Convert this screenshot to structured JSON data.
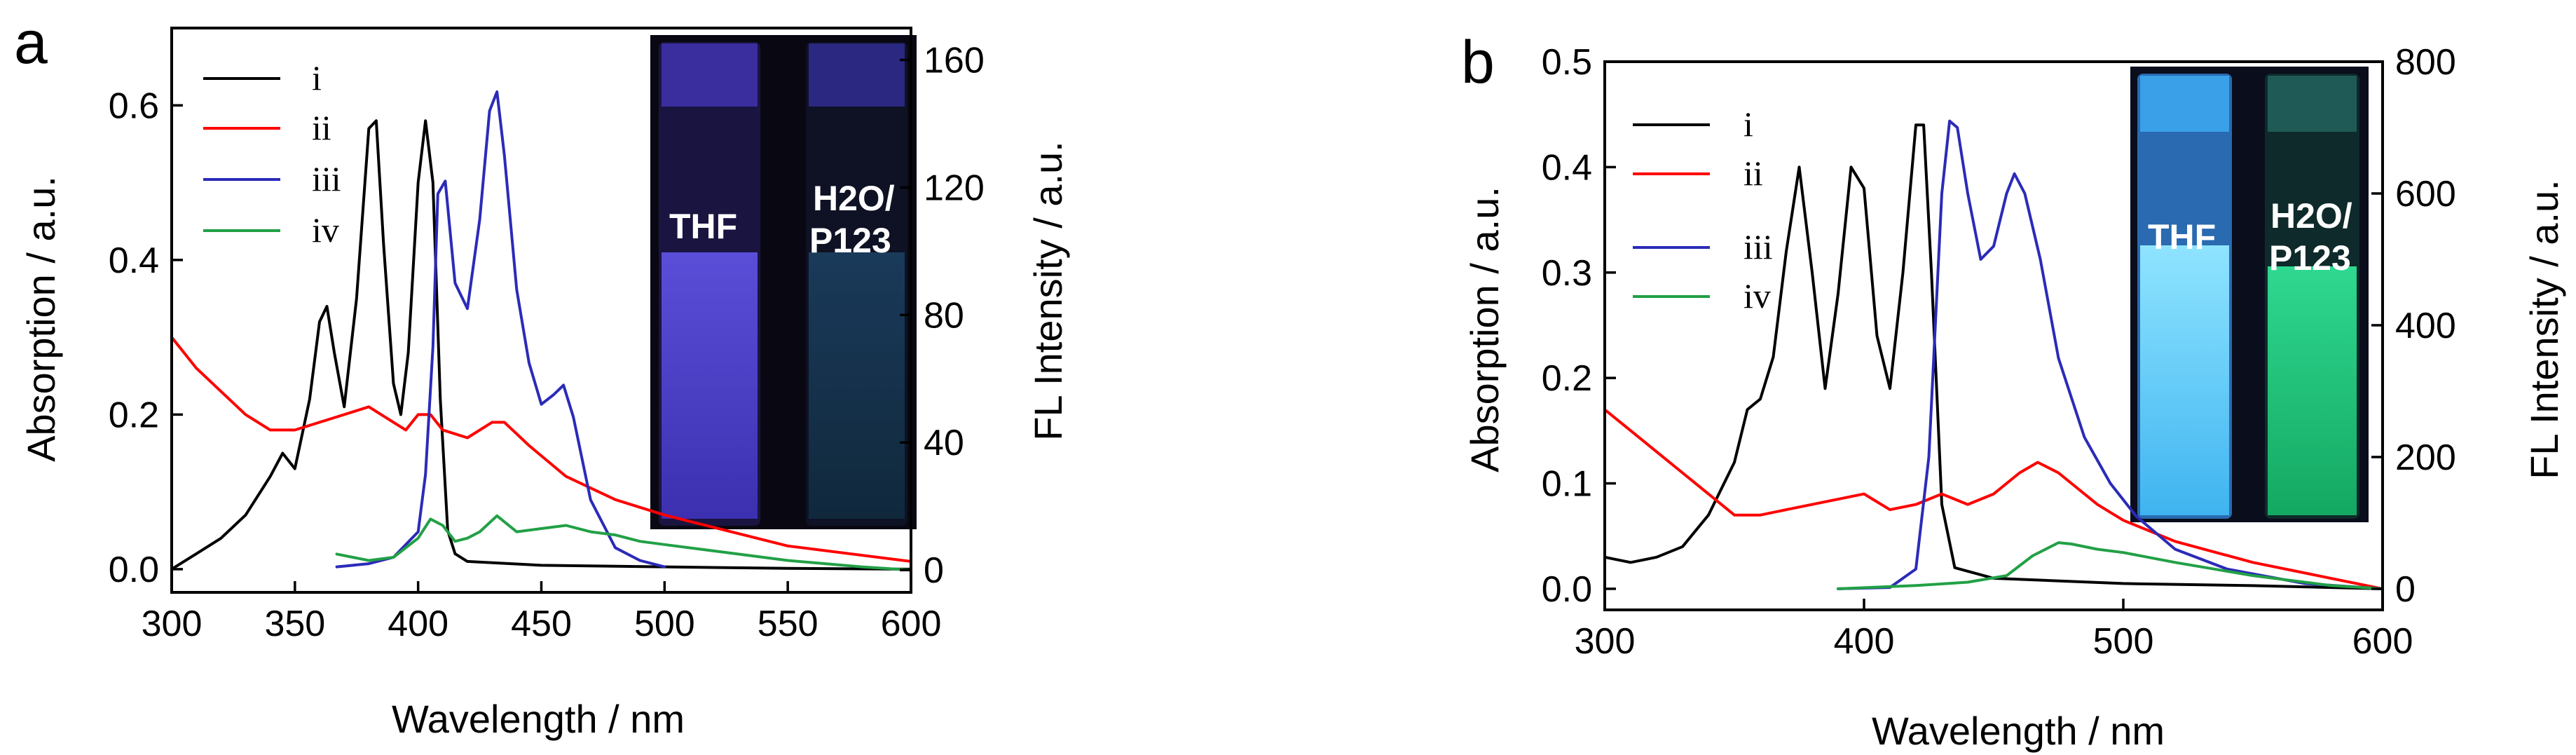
{
  "chart_data": [
    {
      "panel_label": "a",
      "type": "line",
      "xlabel": "Wavelength / nm",
      "ylabel_left": "Absorption / a.u.",
      "ylabel_right": "FL Intensity / a.u.",
      "xlim": [
        300,
        600
      ],
      "ylim_left": [
        -0.03,
        0.7
      ],
      "ylim_right": [
        -7,
        170
      ],
      "xticks": [
        300,
        350,
        400,
        450,
        500,
        550,
        600
      ],
      "yticks_left": [
        0.0,
        0.2,
        0.4,
        0.6
      ],
      "yticks_right": [
        0,
        40,
        80,
        120,
        160
      ],
      "legend": {
        "position": "top-left",
        "entries": [
          "i",
          "ii",
          "iii",
          "iv"
        ]
      },
      "inset": {
        "position": "top-right",
        "vial_labels": [
          "THF",
          "H2O/",
          "P123"
        ]
      },
      "series": [
        {
          "name": "i",
          "color": "#000000",
          "axis": "left",
          "x": [
            300,
            310,
            320,
            330,
            340,
            345,
            350,
            356,
            360,
            363,
            366,
            370,
            375,
            380,
            383,
            386,
            390,
            393,
            396,
            400,
            403,
            406,
            409,
            412,
            415,
            420,
            450,
            500,
            550,
            600
          ],
          "y": [
            0.0,
            0.02,
            0.04,
            0.07,
            0.12,
            0.15,
            0.13,
            0.22,
            0.32,
            0.34,
            0.28,
            0.21,
            0.35,
            0.57,
            0.58,
            0.42,
            0.24,
            0.2,
            0.28,
            0.5,
            0.58,
            0.5,
            0.22,
            0.05,
            0.02,
            0.01,
            0.005,
            0.003,
            0.001,
            0.0
          ]
        },
        {
          "name": "ii",
          "color": "#ff0000",
          "axis": "left",
          "x": [
            300,
            310,
            320,
            330,
            340,
            350,
            360,
            370,
            380,
            390,
            395,
            400,
            405,
            410,
            420,
            430,
            435,
            445,
            460,
            480,
            500,
            550,
            600
          ],
          "y": [
            0.3,
            0.26,
            0.23,
            0.2,
            0.18,
            0.18,
            0.19,
            0.2,
            0.21,
            0.19,
            0.18,
            0.2,
            0.2,
            0.18,
            0.17,
            0.19,
            0.19,
            0.16,
            0.12,
            0.09,
            0.07,
            0.03,
            0.01
          ]
        },
        {
          "name": "iii",
          "color": "#2b2bb8",
          "axis": "right",
          "x": [
            367,
            380,
            390,
            400,
            403,
            406,
            408,
            411,
            415,
            420,
            425,
            429,
            432,
            435,
            440,
            445,
            450,
            455,
            459,
            463,
            470,
            480,
            490,
            500
          ],
          "y": [
            1,
            2,
            4,
            12,
            30,
            70,
            118,
            122,
            90,
            82,
            110,
            144,
            150,
            130,
            88,
            65,
            52,
            55,
            58,
            48,
            22,
            7,
            3,
            1
          ]
        },
        {
          "name": "iv",
          "color": "#22a046",
          "axis": "right",
          "x": [
            367,
            380,
            390,
            400,
            405,
            410,
            415,
            420,
            425,
            432,
            440,
            450,
            460,
            470,
            480,
            490,
            500,
            520,
            550,
            580,
            600
          ],
          "y": [
            5,
            3,
            4,
            10,
            16,
            14,
            9,
            10,
            12,
            17,
            12,
            13,
            14,
            12,
            11,
            9,
            8,
            6,
            3,
            1,
            0
          ]
        }
      ]
    },
    {
      "panel_label": "b",
      "type": "line",
      "xlabel": "Wavelength / nm",
      "ylabel_left": "Absorption / a.u.",
      "ylabel_right": "FL Intensity / a.u.",
      "xlim": [
        300,
        600
      ],
      "ylim_left": [
        -0.02,
        0.5
      ],
      "ylim_right": [
        -32,
        800
      ],
      "xticks": [
        300,
        400,
        500,
        600
      ],
      "yticks_left": [
        0.0,
        0.1,
        0.2,
        0.3,
        0.4,
        0.5
      ],
      "yticks_right": [
        0,
        200,
        400,
        600,
        800
      ],
      "legend": {
        "position": "top-left",
        "entries": [
          "i",
          "ii",
          "iii",
          "iv"
        ]
      },
      "inset": {
        "position": "top-right",
        "vial_labels": [
          "THF",
          "H2O/",
          "P123"
        ]
      },
      "series": [
        {
          "name": "i",
          "color": "#000000",
          "axis": "left",
          "x": [
            300,
            310,
            320,
            330,
            340,
            350,
            355,
            360,
            365,
            370,
            375,
            380,
            385,
            390,
            395,
            400,
            405,
            410,
            415,
            420,
            423,
            426,
            430,
            435,
            450,
            500,
            550,
            600
          ],
          "y": [
            0.03,
            0.025,
            0.03,
            0.04,
            0.07,
            0.12,
            0.17,
            0.18,
            0.22,
            0.32,
            0.4,
            0.3,
            0.19,
            0.28,
            0.4,
            0.38,
            0.24,
            0.19,
            0.3,
            0.44,
            0.44,
            0.3,
            0.08,
            0.02,
            0.01,
            0.005,
            0.003,
            0.0
          ]
        },
        {
          "name": "ii",
          "color": "#ff0000",
          "axis": "left",
          "x": [
            300,
            310,
            320,
            330,
            340,
            350,
            360,
            370,
            380,
            390,
            400,
            410,
            420,
            430,
            440,
            450,
            460,
            467,
            475,
            490,
            500,
            520,
            550,
            580,
            600
          ],
          "y": [
            0.17,
            0.15,
            0.13,
            0.11,
            0.09,
            0.07,
            0.07,
            0.075,
            0.08,
            0.085,
            0.09,
            0.075,
            0.08,
            0.09,
            0.08,
            0.09,
            0.11,
            0.12,
            0.11,
            0.08,
            0.065,
            0.045,
            0.025,
            0.01,
            0.0
          ]
        },
        {
          "name": "iii",
          "color": "#2b2bb8",
          "axis": "right",
          "x": [
            390,
            410,
            420,
            425,
            430,
            433,
            436,
            440,
            445,
            450,
            455,
            458,
            462,
            468,
            475,
            485,
            495,
            505,
            520,
            540,
            570,
            600
          ],
          "y": [
            0,
            2,
            30,
            200,
            600,
            710,
            700,
            600,
            500,
            520,
            600,
            630,
            600,
            500,
            350,
            230,
            160,
            110,
            60,
            30,
            8,
            0
          ]
        },
        {
          "name": "iv",
          "color": "#22a046",
          "axis": "right",
          "x": [
            390,
            420,
            440,
            455,
            465,
            475,
            480,
            490,
            500,
            520,
            550,
            580,
            600
          ],
          "y": [
            0,
            5,
            10,
            20,
            50,
            70,
            68,
            60,
            55,
            40,
            20,
            5,
            0
          ]
        }
      ]
    }
  ]
}
